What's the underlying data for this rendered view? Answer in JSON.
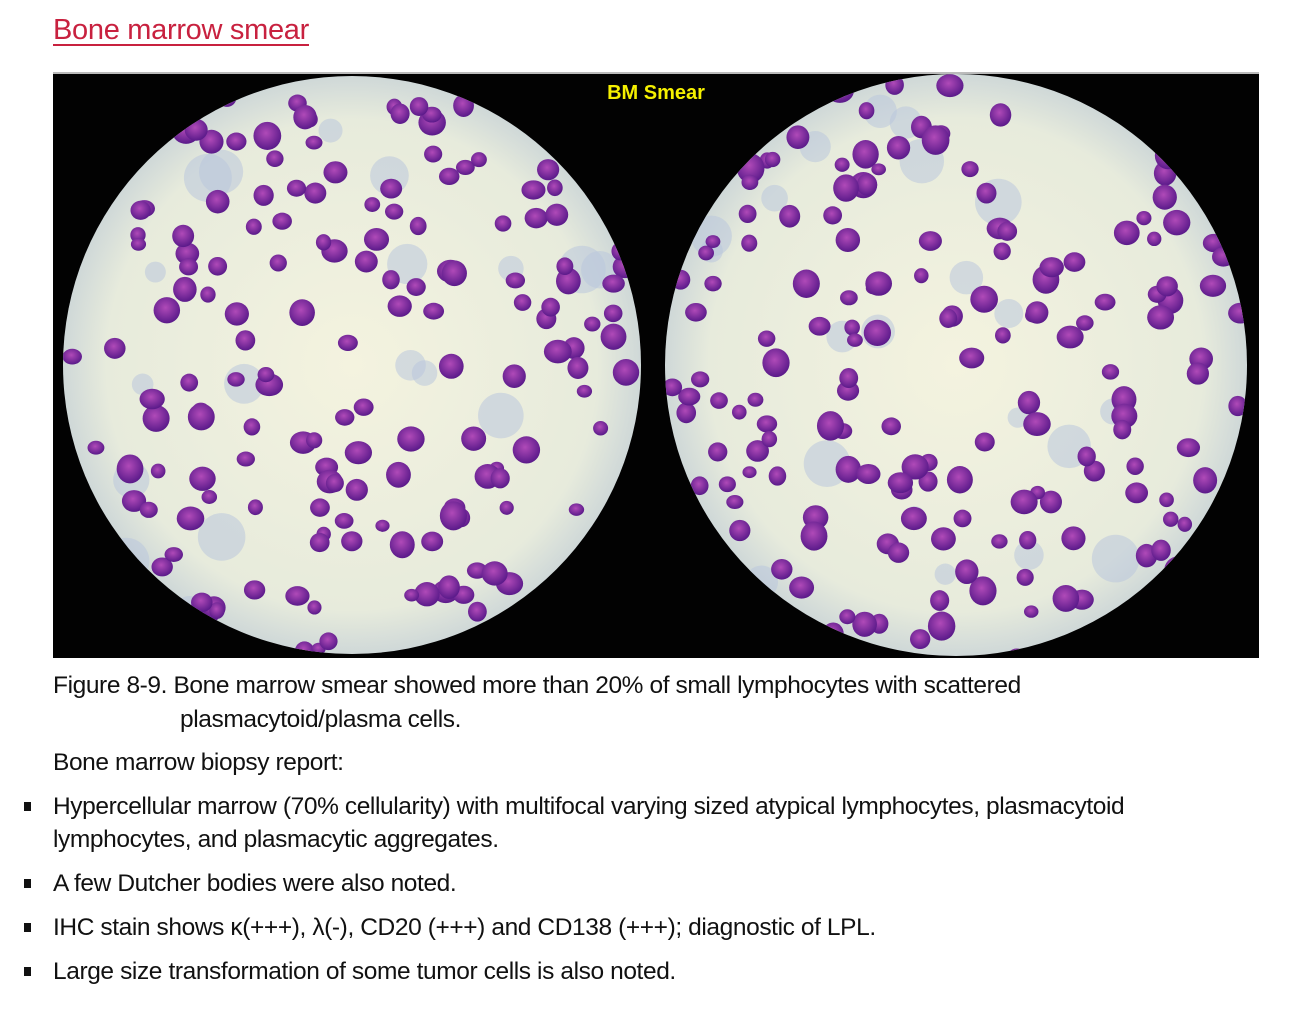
{
  "title": "Bone marrow smear",
  "figure": {
    "label": "BM Smear",
    "caption_line1": "Figure 8-9. Bone marrow smear showed more than 20% of small lymphocytes with scattered",
    "caption_line2": "plasmacytoid/plasma cells."
  },
  "report": {
    "heading": "Bone marrow biopsy report:",
    "bullets": [
      {
        "line1": "Hypercellular marrow (70% cellularity) with multifocal varying sized atypical lymphocytes, plasmacytoid",
        "line2": "lymphocytes, and plasmacytic aggregates."
      },
      {
        "line1": "A few Dutcher bodies were also noted."
      },
      {
        "line1": "IHC stain shows κ(+++), λ(-), CD20 (+++) and CD138 (+++); diagnostic of LPL."
      },
      {
        "line1": "Large size transformation of some tumor cells is also noted."
      }
    ]
  },
  "colors": {
    "title": "#c8213f",
    "label": "#f5f000",
    "cell": "#7a2a9e",
    "background_field": "#f3f2dc"
  }
}
